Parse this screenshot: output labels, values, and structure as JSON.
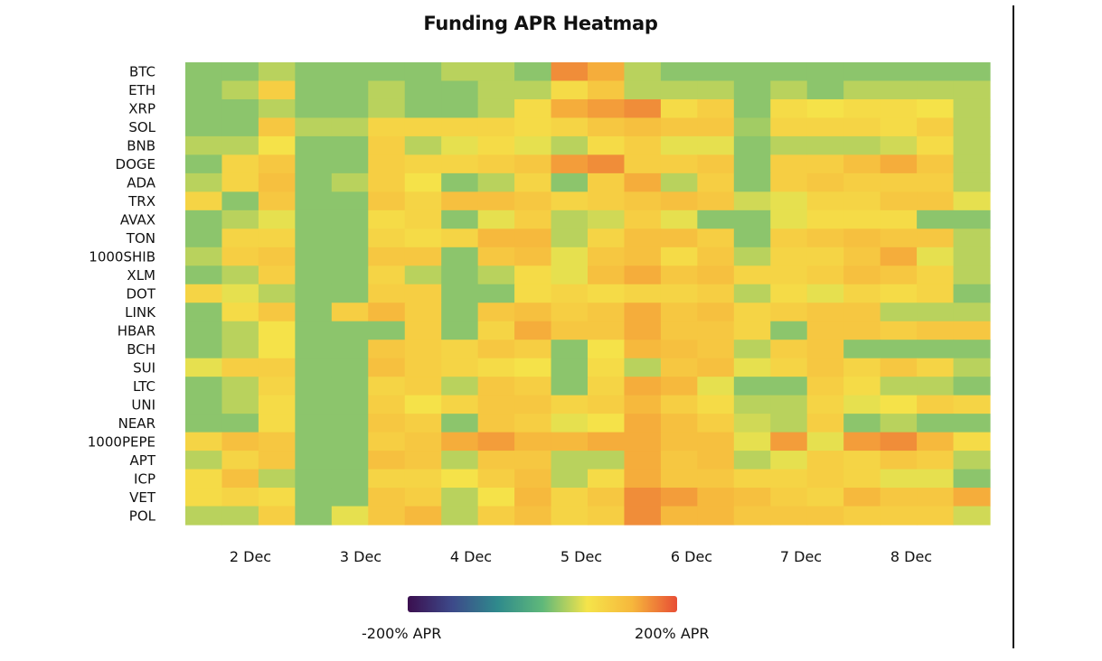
{
  "chart_data": {
    "type": "heatmap",
    "title": "Funding APR Heatmap",
    "rows": [
      "BTC",
      "ETH",
      "XRP",
      "SOL",
      "BNB",
      "DOGE",
      "ADA",
      "TRX",
      "AVAX",
      "TON",
      "1000SHIB",
      "XLM",
      "DOT",
      "LINK",
      "HBAR",
      "BCH",
      "SUI",
      "LTC",
      "UNI",
      "NEAR",
      "1000PEPE",
      "APT",
      "ICP",
      "VET",
      "POL"
    ],
    "x_tick_labels": [
      "2 Dec",
      "3 Dec",
      "4 Dec",
      "5 Dec",
      "6 Dec",
      "7 Dec",
      "8 Dec"
    ],
    "columns_per_day": 3,
    "value_range": [
      -200,
      200
    ],
    "colorbar": {
      "min_label": "-200% APR",
      "max_label": "200% APR",
      "colors": [
        "#3b0f4f",
        "#3d4a8a",
        "#2f8a8c",
        "#5fb87a",
        "#f5e44a",
        "#f6b73c",
        "#e84e35"
      ]
    },
    "values": [
      [
        20,
        20,
        40,
        20,
        20,
        20,
        20,
        40,
        40,
        20,
        160,
        140,
        40,
        20,
        20,
        20,
        20,
        20,
        20,
        20,
        20,
        20
      ],
      [
        20,
        40,
        100,
        20,
        20,
        40,
        20,
        20,
        40,
        40,
        80,
        110,
        40,
        40,
        40,
        20,
        40,
        20,
        40,
        40,
        40,
        40
      ],
      [
        20,
        20,
        40,
        20,
        20,
        40,
        20,
        20,
        40,
        80,
        140,
        150,
        160,
        80,
        100,
        20,
        80,
        70,
        80,
        80,
        70,
        40
      ],
      [
        20,
        20,
        110,
        40,
        40,
        90,
        90,
        90,
        90,
        80,
        90,
        110,
        120,
        110,
        110,
        30,
        90,
        90,
        90,
        80,
        100,
        40
      ],
      [
        40,
        40,
        70,
        20,
        20,
        100,
        40,
        60,
        80,
        60,
        40,
        80,
        100,
        60,
        60,
        20,
        40,
        40,
        40,
        50,
        80,
        40
      ],
      [
        20,
        90,
        110,
        20,
        20,
        100,
        90,
        90,
        100,
        110,
        150,
        160,
        100,
        100,
        110,
        20,
        100,
        100,
        120,
        140,
        110,
        40
      ],
      [
        40,
        90,
        120,
        20,
        40,
        100,
        70,
        20,
        40,
        90,
        20,
        100,
        140,
        40,
        100,
        20,
        100,
        110,
        100,
        100,
        100,
        40
      ],
      [
        90,
        20,
        110,
        20,
        20,
        110,
        90,
        120,
        120,
        110,
        90,
        100,
        110,
        120,
        110,
        50,
        60,
        90,
        90,
        110,
        110,
        60
      ],
      [
        20,
        40,
        60,
        20,
        20,
        80,
        90,
        20,
        60,
        100,
        40,
        50,
        100,
        60,
        20,
        20,
        60,
        80,
        80,
        80,
        20,
        20
      ],
      [
        20,
        90,
        90,
        20,
        20,
        90,
        80,
        90,
        130,
        130,
        40,
        90,
        120,
        120,
        100,
        20,
        100,
        110,
        120,
        110,
        110,
        40
      ],
      [
        40,
        100,
        110,
        20,
        20,
        110,
        110,
        20,
        110,
        120,
        60,
        110,
        120,
        80,
        110,
        40,
        90,
        90,
        110,
        140,
        60,
        40
      ],
      [
        20,
        40,
        100,
        20,
        20,
        90,
        40,
        20,
        40,
        80,
        60,
        120,
        140,
        110,
        120,
        90,
        90,
        100,
        120,
        110,
        90,
        40
      ],
      [
        90,
        60,
        40,
        20,
        20,
        100,
        100,
        20,
        20,
        80,
        90,
        80,
        90,
        90,
        100,
        40,
        80,
        60,
        90,
        80,
        90,
        20
      ],
      [
        20,
        80,
        110,
        20,
        100,
        130,
        100,
        20,
        110,
        120,
        100,
        110,
        140,
        110,
        120,
        90,
        100,
        110,
        110,
        40,
        40,
        40
      ],
      [
        20,
        40,
        70,
        20,
        20,
        20,
        100,
        20,
        90,
        140,
        110,
        110,
        140,
        110,
        110,
        90,
        20,
        110,
        110,
        100,
        110,
        110
      ],
      [
        20,
        40,
        70,
        20,
        20,
        110,
        100,
        90,
        110,
        100,
        20,
        70,
        130,
        120,
        110,
        40,
        100,
        110,
        20,
        20,
        20,
        20
      ],
      [
        60,
        100,
        100,
        20,
        20,
        120,
        100,
        90,
        80,
        70,
        20,
        80,
        40,
        110,
        120,
        60,
        90,
        110,
        90,
        110,
        90,
        40
      ],
      [
        20,
        40,
        90,
        20,
        20,
        90,
        100,
        40,
        110,
        100,
        20,
        90,
        140,
        130,
        60,
        20,
        20,
        100,
        80,
        40,
        40,
        20
      ],
      [
        20,
        40,
        80,
        20,
        20,
        100,
        70,
        90,
        110,
        110,
        90,
        100,
        130,
        100,
        80,
        40,
        40,
        90,
        60,
        70,
        100,
        90
      ],
      [
        20,
        20,
        80,
        20,
        20,
        110,
        100,
        20,
        110,
        100,
        60,
        70,
        140,
        120,
        100,
        50,
        40,
        100,
        20,
        40,
        20,
        20
      ],
      [
        90,
        120,
        110,
        20,
        20,
        100,
        110,
        140,
        150,
        130,
        130,
        140,
        140,
        120,
        120,
        60,
        150,
        60,
        150,
        160,
        130,
        80
      ],
      [
        40,
        90,
        110,
        20,
        20,
        120,
        110,
        40,
        110,
        110,
        40,
        40,
        140,
        110,
        120,
        40,
        60,
        100,
        90,
        110,
        100,
        40
      ],
      [
        80,
        120,
        40,
        20,
        20,
        90,
        90,
        70,
        100,
        120,
        40,
        80,
        140,
        110,
        110,
        90,
        90,
        100,
        90,
        60,
        60,
        20
      ],
      [
        80,
        90,
        80,
        20,
        20,
        110,
        100,
        40,
        70,
        130,
        90,
        110,
        160,
        150,
        130,
        120,
        100,
        90,
        130,
        110,
        110,
        140
      ],
      [
        40,
        40,
        100,
        20,
        60,
        110,
        130,
        40,
        100,
        120,
        90,
        100,
        160,
        130,
        130,
        110,
        110,
        110,
        100,
        100,
        100,
        50
      ]
    ]
  }
}
